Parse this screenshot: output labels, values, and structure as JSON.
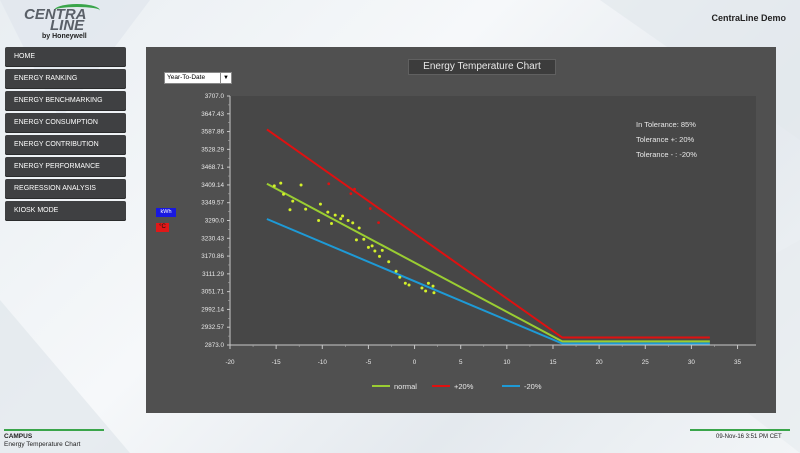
{
  "header": {
    "logo_top": "CENTRA",
    "logo_bottom": "LINE",
    "logo_sub": "by Honeywell",
    "app_title": "CentraLine Demo"
  },
  "sidebar": {
    "items": [
      {
        "label": "HOME"
      },
      {
        "label": "ENERGY RANKING"
      },
      {
        "label": "ENERGY BENCHMARKING"
      },
      {
        "label": "ENERGY CONSUMPTION"
      },
      {
        "label": "ENERGY CONTRIBUTION"
      },
      {
        "label": "ENERGY PERFORMANCE"
      },
      {
        "label": "REGRESSION ANALYSIS"
      },
      {
        "label": "KIOSK MODE"
      }
    ]
  },
  "panel": {
    "title": "Energy Temperature Chart",
    "period_select": "Year-To-Date",
    "unit_energy": "kWh",
    "unit_temp": "°C",
    "stats": [
      "In Tolerance: 85%",
      "Tolerance +: 20%",
      "Tolerance - : -20%"
    ]
  },
  "chart_data": {
    "type": "scatter",
    "xlim": [
      -20,
      37
    ],
    "ylim": [
      2873.0,
      3707.0
    ],
    "x_ticks": [
      "-20",
      "-15",
      "-10",
      "-5",
      "0",
      "5",
      "10",
      "15",
      "20",
      "25",
      "30",
      "35"
    ],
    "y_ticks": [
      "2873.0",
      "2932.57",
      "2992.14",
      "3051.71",
      "3111.29",
      "3170.86",
      "3230.43",
      "3290.0",
      "3349.57",
      "3409.14",
      "3468.71",
      "3528.29",
      "3587.86",
      "3647.43",
      "3707.0"
    ],
    "series": [
      {
        "name": "normal",
        "color": "#9acd32",
        "points": [
          [
            -16,
            3413
          ],
          [
            16,
            2885
          ],
          [
            32,
            2885
          ]
        ]
      },
      {
        "name": "+20%",
        "color": "#e01010",
        "points": [
          [
            -16,
            3595
          ],
          [
            16,
            2898
          ],
          [
            32,
            2898
          ]
        ]
      },
      {
        "name": "-20%",
        "color": "#1e9ad6",
        "points": [
          [
            -16,
            3295
          ],
          [
            16,
            2878
          ],
          [
            32,
            2878
          ]
        ]
      }
    ],
    "points_normal": [
      [
        -15.2,
        3406
      ],
      [
        -14.5,
        3415
      ],
      [
        -14.2,
        3378
      ],
      [
        -13.5,
        3326
      ],
      [
        -13.2,
        3355
      ],
      [
        -12.3,
        3409
      ],
      [
        -11.8,
        3328
      ],
      [
        -10.4,
        3290
      ],
      [
        -10.2,
        3345
      ],
      [
        -9.4,
        3318
      ],
      [
        -8.6,
        3308
      ],
      [
        -8.0,
        3296
      ],
      [
        -7.8,
        3305
      ],
      [
        -7.2,
        3290
      ],
      [
        -6.7,
        3282
      ],
      [
        -6.0,
        3265
      ],
      [
        -5.5,
        3227
      ],
      [
        -5.0,
        3200
      ],
      [
        -4.6,
        3205
      ],
      [
        -4.3,
        3188
      ],
      [
        -3.8,
        3170
      ],
      [
        -2.8,
        3152
      ],
      [
        -2.0,
        3120
      ],
      [
        -1.6,
        3100
      ],
      [
        -0.6,
        3074
      ],
      [
        0.8,
        3064
      ],
      [
        1.2,
        3054
      ],
      [
        2.1,
        3048
      ],
      [
        -3.5,
        3190
      ],
      [
        -1.0,
        3080
      ],
      [
        -6.3,
        3225
      ],
      [
        -9.0,
        3280
      ]
    ],
    "points_outliers": [
      [
        -6.5,
        3395
      ],
      [
        -6.9,
        3380
      ],
      [
        -4.8,
        3330
      ],
      [
        -3.9,
        3283
      ],
      [
        -9.3,
        3413
      ]
    ],
    "points_above": [
      [
        1.5,
        3080
      ],
      [
        2.0,
        3070
      ]
    ]
  },
  "footer": {
    "campus": "CAMPUS",
    "subtitle": "Energy Temperature Chart",
    "timestamp": "09-Nov-16 3:51 PM CET"
  }
}
